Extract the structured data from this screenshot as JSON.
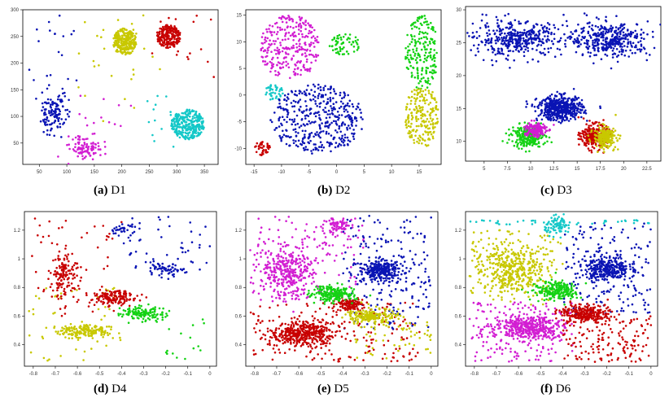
{
  "colors": {
    "blue": "#0a14b4",
    "red": "#c80000",
    "magenta": "#d21ed2",
    "yellow": "#c8c800",
    "cyan": "#14c8c8",
    "green": "#14d214"
  },
  "chart_data": [
    {
      "id": "D1",
      "type": "scatter",
      "caption_tag": "(a)",
      "caption_name": "D1",
      "xlim": [
        20,
        375
      ],
      "ylim": [
        10,
        300
      ],
      "xticks": [
        50,
        100,
        150,
        200,
        250,
        300,
        350
      ],
      "yticks": [
        50,
        100,
        150,
        200,
        250,
        300
      ],
      "clusters": [
        {
          "color": "blue",
          "n": 110,
          "cx": 75,
          "cy": 105,
          "sx": 12,
          "sy": 18,
          "shape": "gauss"
        },
        {
          "color": "magenta",
          "n": 100,
          "cx": 135,
          "cy": 40,
          "sx": 15,
          "sy": 10,
          "shape": "gauss"
        },
        {
          "color": "yellow",
          "n": 260,
          "cx": 205,
          "cy": 240,
          "sx": 22,
          "sy": 25,
          "shape": "disc"
        },
        {
          "color": "red",
          "n": 220,
          "cx": 285,
          "cy": 250,
          "sx": 22,
          "sy": 22,
          "shape": "disc"
        },
        {
          "color": "cyan",
          "n": 300,
          "cx": 320,
          "cy": 85,
          "sx": 30,
          "sy": 28,
          "shape": "disc"
        }
      ],
      "noise": [
        {
          "color": "blue",
          "n": 40,
          "x": [
            30,
            120
          ],
          "y": [
            60,
            290
          ]
        },
        {
          "color": "yellow",
          "n": 30,
          "x": [
            120,
            270
          ],
          "y": [
            90,
            290
          ]
        },
        {
          "color": "magenta",
          "n": 15,
          "x": [
            110,
            220
          ],
          "y": [
            50,
            150
          ]
        },
        {
          "color": "cyan",
          "n": 15,
          "x": [
            240,
            310
          ],
          "y": [
            40,
            140
          ]
        },
        {
          "color": "red",
          "n": 15,
          "x": [
            250,
            370
          ],
          "y": [
            170,
            290
          ]
        }
      ]
    },
    {
      "id": "D2",
      "type": "scatter",
      "caption_tag": "(b)",
      "caption_name": "D2",
      "xlim": [
        -16.5,
        19
      ],
      "ylim": [
        -13,
        16
      ],
      "xticks": [
        -15,
        -10,
        -5,
        0,
        5,
        10,
        15
      ],
      "yticks": [
        -10,
        -5,
        0,
        5,
        10,
        15
      ],
      "clusters": [
        {
          "color": "magenta",
          "n": 280,
          "cx": -8.5,
          "cy": 9,
          "sx": 5.5,
          "sy": 6,
          "shape": "disc"
        },
        {
          "color": "green",
          "n": 60,
          "cx": 1.5,
          "cy": 9.5,
          "sx": 2.8,
          "sy": 2,
          "shape": "disc"
        },
        {
          "color": "green",
          "n": 200,
          "cx": 15.5,
          "cy": 8,
          "sx": 3,
          "sy": 7,
          "shape": "disc"
        },
        {
          "color": "cyan",
          "n": 40,
          "cx": -11.5,
          "cy": 0.5,
          "sx": 1.8,
          "sy": 1.5,
          "shape": "disc"
        },
        {
          "color": "blue",
          "n": 420,
          "cx": -3.5,
          "cy": -4.5,
          "sx": 8.5,
          "sy": 6.5,
          "shape": "disc"
        },
        {
          "color": "yellow",
          "n": 200,
          "cx": 15.5,
          "cy": -4,
          "sx": 3,
          "sy": 6,
          "shape": "disc"
        },
        {
          "color": "red",
          "n": 40,
          "cx": -13.5,
          "cy": -10,
          "sx": 1.4,
          "sy": 1.4,
          "shape": "disc"
        }
      ],
      "noise": []
    },
    {
      "id": "D3",
      "type": "scatter",
      "caption_tag": "(c)",
      "caption_name": "D3",
      "xlim": [
        3,
        24
      ],
      "ylim": [
        7,
        30.5
      ],
      "xticks": [
        5,
        7.5,
        10,
        12.5,
        15,
        17.5,
        20,
        22.5
      ],
      "yticks": [
        10,
        15,
        20,
        25,
        30
      ],
      "clusters": [
        {
          "color": "blue",
          "n": 380,
          "cx": 8.5,
          "cy": 25.5,
          "sx": 2.2,
          "sy": 1.3,
          "shape": "gauss"
        },
        {
          "color": "blue",
          "n": 380,
          "cx": 18.5,
          "cy": 25.5,
          "sx": 2.2,
          "sy": 1.3,
          "shape": "gauss"
        },
        {
          "color": "blue",
          "n": 500,
          "cx": 13.2,
          "cy": 15,
          "sx": 1.2,
          "sy": 0.9,
          "shape": "gauss"
        },
        {
          "color": "green",
          "n": 260,
          "cx": 9.8,
          "cy": 10.8,
          "sx": 0.9,
          "sy": 0.8,
          "shape": "gauss"
        },
        {
          "color": "magenta",
          "n": 160,
          "cx": 10.5,
          "cy": 11.8,
          "sx": 0.6,
          "sy": 0.6,
          "shape": "gauss"
        },
        {
          "color": "red",
          "n": 260,
          "cx": 16.8,
          "cy": 10.8,
          "sx": 0.7,
          "sy": 0.9,
          "shape": "gauss"
        },
        {
          "color": "yellow",
          "n": 220,
          "cx": 18,
          "cy": 10.6,
          "sx": 0.6,
          "sy": 0.8,
          "shape": "gauss"
        }
      ],
      "noise": [
        {
          "color": "blue",
          "n": 20,
          "x": [
            3.5,
            23.5
          ],
          "y": [
            22,
            29.5
          ]
        }
      ]
    },
    {
      "id": "D4",
      "type": "scatter",
      "caption_tag": "(d)",
      "caption_name": "D4",
      "xlim": [
        -0.84,
        0.03
      ],
      "ylim": [
        0.25,
        1.33
      ],
      "xticks": [
        -0.8,
        -0.7,
        -0.6,
        -0.5,
        -0.4,
        -0.3,
        -0.2,
        -0.1,
        0.0
      ],
      "yticks": [
        0.4,
        0.6,
        0.8,
        1.0,
        1.2
      ],
      "clusters": [
        {
          "color": "red",
          "n": 130,
          "cx": -0.66,
          "cy": 0.88,
          "sx": 0.03,
          "sy": 0.07,
          "shape": "gauss",
          "rot": -0.7
        },
        {
          "color": "red",
          "n": 150,
          "cx": -0.43,
          "cy": 0.73,
          "sx": 0.05,
          "sy": 0.025,
          "shape": "gauss",
          "rot": -0.5
        },
        {
          "color": "green",
          "n": 130,
          "cx": -0.3,
          "cy": 0.62,
          "sx": 0.055,
          "sy": 0.025,
          "shape": "gauss",
          "rot": -0.5
        },
        {
          "color": "yellow",
          "n": 170,
          "cx": -0.57,
          "cy": 0.5,
          "sx": 0.06,
          "sy": 0.025,
          "shape": "gauss",
          "rot": -0.8
        },
        {
          "color": "blue",
          "n": 60,
          "cx": -0.2,
          "cy": 0.92,
          "sx": 0.04,
          "sy": 0.025,
          "shape": "gauss",
          "rot": 0.3
        },
        {
          "color": "blue",
          "n": 30,
          "cx": -0.4,
          "cy": 1.2,
          "sx": 0.03,
          "sy": 0.02,
          "shape": "gauss"
        }
      ],
      "noise": [
        {
          "color": "red",
          "n": 60,
          "x": [
            -0.82,
            -0.4
          ],
          "y": [
            0.6,
            1.3
          ]
        },
        {
          "color": "yellow",
          "n": 50,
          "x": [
            -0.82,
            -0.4
          ],
          "y": [
            0.28,
            0.8
          ]
        },
        {
          "color": "blue",
          "n": 50,
          "x": [
            -0.4,
            0.0
          ],
          "y": [
            0.85,
            1.3
          ]
        },
        {
          "color": "green",
          "n": 15,
          "x": [
            -0.2,
            0.0
          ],
          "y": [
            0.3,
            0.6
          ]
        }
      ]
    },
    {
      "id": "D5",
      "type": "scatter",
      "caption_tag": "(e)",
      "caption_name": "D5",
      "xlim": [
        -0.84,
        0.03
      ],
      "ylim": [
        0.25,
        1.33
      ],
      "xticks": [
        -0.8,
        -0.7,
        -0.6,
        -0.5,
        -0.4,
        -0.3,
        -0.2,
        -0.1,
        0.0
      ],
      "yticks": [
        0.4,
        0.6,
        0.8,
        1.0,
        1.2
      ],
      "clusters": [
        {
          "color": "magenta",
          "n": 320,
          "cx": -0.65,
          "cy": 0.9,
          "sx": 0.06,
          "sy": 0.09,
          "shape": "gauss",
          "rot": -0.5
        },
        {
          "color": "magenta",
          "n": 80,
          "cx": -0.42,
          "cy": 1.23,
          "sx": 0.03,
          "sy": 0.03,
          "shape": "gauss"
        },
        {
          "color": "red",
          "n": 380,
          "cx": -0.58,
          "cy": 0.48,
          "sx": 0.07,
          "sy": 0.04,
          "shape": "gauss",
          "rot": -0.7
        },
        {
          "color": "red",
          "n": 120,
          "cx": -0.37,
          "cy": 0.68,
          "sx": 0.03,
          "sy": 0.02,
          "shape": "gauss"
        },
        {
          "color": "green",
          "n": 200,
          "cx": -0.45,
          "cy": 0.76,
          "sx": 0.05,
          "sy": 0.03,
          "shape": "gauss",
          "rot": -0.5
        },
        {
          "color": "yellow",
          "n": 200,
          "cx": -0.27,
          "cy": 0.6,
          "sx": 0.05,
          "sy": 0.025,
          "shape": "gauss",
          "rot": -0.4
        },
        {
          "color": "blue",
          "n": 280,
          "cx": -0.23,
          "cy": 0.92,
          "sx": 0.05,
          "sy": 0.035,
          "shape": "gauss"
        }
      ],
      "noise": [
        {
          "color": "magenta",
          "n": 150,
          "x": [
            -0.82,
            -0.3
          ],
          "y": [
            0.7,
            1.3
          ]
        },
        {
          "color": "red",
          "n": 200,
          "x": [
            -0.82,
            -0.05
          ],
          "y": [
            0.28,
            0.7
          ]
        },
        {
          "color": "blue",
          "n": 200,
          "x": [
            -0.4,
            0.0
          ],
          "y": [
            0.5,
            1.3
          ]
        },
        {
          "color": "yellow",
          "n": 60,
          "x": [
            -0.35,
            0.0
          ],
          "y": [
            0.3,
            0.6
          ]
        }
      ]
    },
    {
      "id": "D6",
      "type": "scatter",
      "caption_tag": "(f)",
      "caption_name": "D6",
      "xlim": [
        -0.84,
        0.03
      ],
      "ylim": [
        0.25,
        1.33
      ],
      "xticks": [
        -0.8,
        -0.7,
        -0.6,
        -0.5,
        -0.4,
        -0.3,
        -0.2,
        -0.1,
        0.0
      ],
      "yticks": [
        0.4,
        0.6,
        0.8,
        1.0,
        1.2
      ],
      "clusters": [
        {
          "color": "yellow",
          "n": 380,
          "cx": -0.63,
          "cy": 0.92,
          "sx": 0.07,
          "sy": 0.09,
          "shape": "gauss",
          "rot": -0.5
        },
        {
          "color": "magenta",
          "n": 400,
          "cx": -0.55,
          "cy": 0.52,
          "sx": 0.08,
          "sy": 0.045,
          "shape": "gauss",
          "rot": -0.8
        },
        {
          "color": "green",
          "n": 220,
          "cx": -0.43,
          "cy": 0.78,
          "sx": 0.05,
          "sy": 0.03,
          "shape": "gauss",
          "rot": -0.5
        },
        {
          "color": "red",
          "n": 280,
          "cx": -0.3,
          "cy": 0.62,
          "sx": 0.06,
          "sy": 0.03,
          "shape": "gauss",
          "rot": -0.4
        },
        {
          "color": "blue",
          "n": 280,
          "cx": -0.2,
          "cy": 0.93,
          "sx": 0.05,
          "sy": 0.04,
          "shape": "gauss"
        },
        {
          "color": "cyan",
          "n": 90,
          "cx": -0.42,
          "cy": 1.23,
          "sx": 0.03,
          "sy": 0.03,
          "shape": "gauss"
        }
      ],
      "noise": [
        {
          "color": "cyan",
          "n": 40,
          "x": [
            -0.82,
            0.0
          ],
          "y": [
            1.24,
            1.27
          ]
        },
        {
          "color": "yellow",
          "n": 120,
          "x": [
            -0.82,
            -0.4
          ],
          "y": [
            0.7,
            1.2
          ]
        },
        {
          "color": "magenta",
          "n": 150,
          "x": [
            -0.82,
            -0.35
          ],
          "y": [
            0.28,
            0.7
          ]
        },
        {
          "color": "blue",
          "n": 200,
          "x": [
            -0.4,
            0.0
          ],
          "y": [
            0.6,
            1.25
          ]
        },
        {
          "color": "red",
          "n": 150,
          "x": [
            -0.4,
            0.0
          ],
          "y": [
            0.28,
            0.6
          ]
        }
      ]
    }
  ]
}
